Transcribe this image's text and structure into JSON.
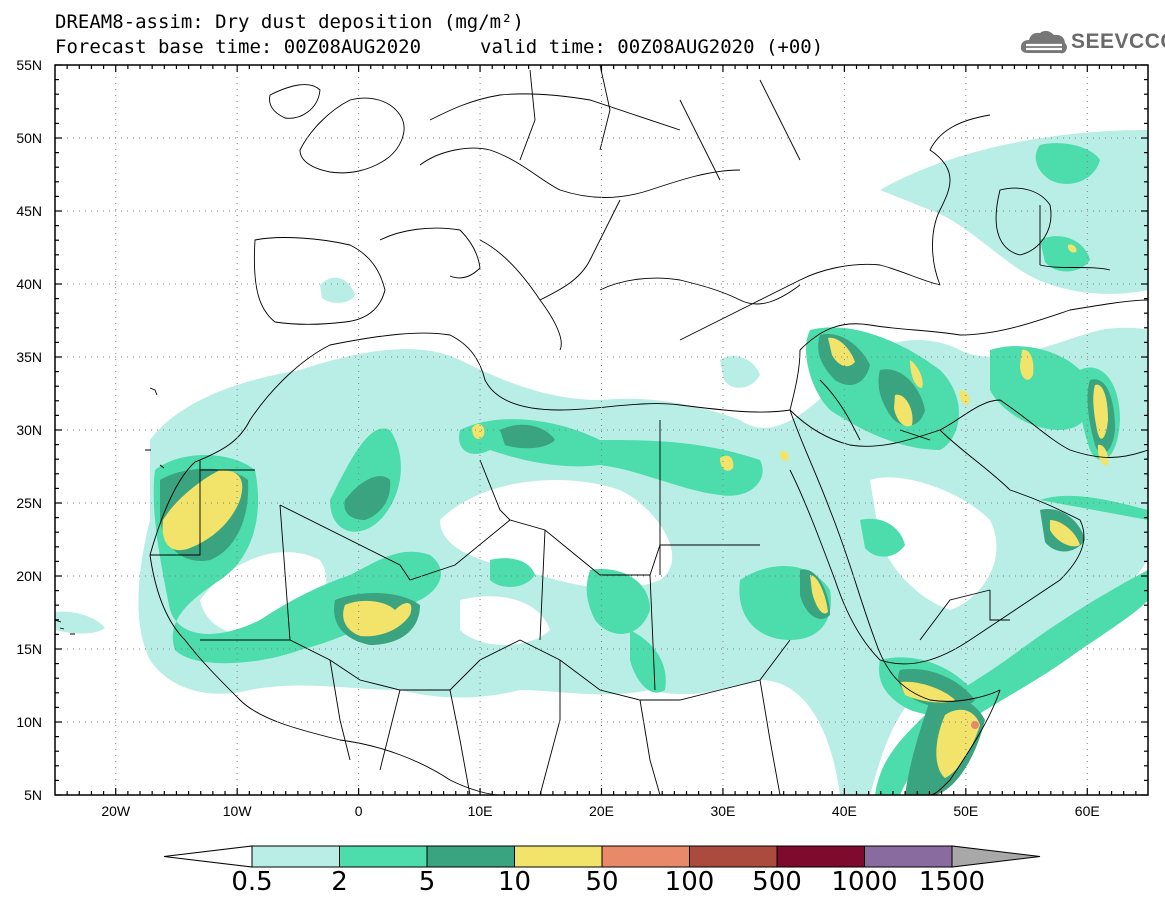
{
  "header": {
    "line1": "DREAM8-assim: Dry dust deposition (mg/m²)",
    "line2_left": "Forecast base time: 00Z08AUG2020",
    "line2_right": "valid time: 00Z08AUG2020 (+00)"
  },
  "logo": {
    "text": "SEEVCCC",
    "icon": "cloud-logo-icon",
    "color": "#6a6a6a"
  },
  "map": {
    "lon_range": [
      -25,
      65
    ],
    "lat_range": [
      5,
      55
    ],
    "lat_labels": [
      "55N",
      "50N",
      "45N",
      "40N",
      "35N",
      "30N",
      "25N",
      "20N",
      "15N",
      "10N",
      "5N"
    ],
    "lon_labels": [
      "20W",
      "10W",
      "0",
      "10E",
      "20E",
      "30E",
      "40E",
      "50E",
      "60E"
    ],
    "grid": "dotted",
    "background": "#ffffff"
  },
  "colorbar": {
    "labels": [
      "0.5",
      "2",
      "5",
      "10",
      "50",
      "100",
      "500",
      "1000",
      "1500"
    ],
    "colors": [
      "#b8eee6",
      "#4ddcab",
      "#3aa37f",
      "#f2e36a",
      "#e8896a",
      "#ab4b3e",
      "#7e0a2e",
      "#8a6ba0",
      "#a8a8a8"
    ],
    "under_color": "#ffffff",
    "over_color": "#a8a8a8"
  }
}
